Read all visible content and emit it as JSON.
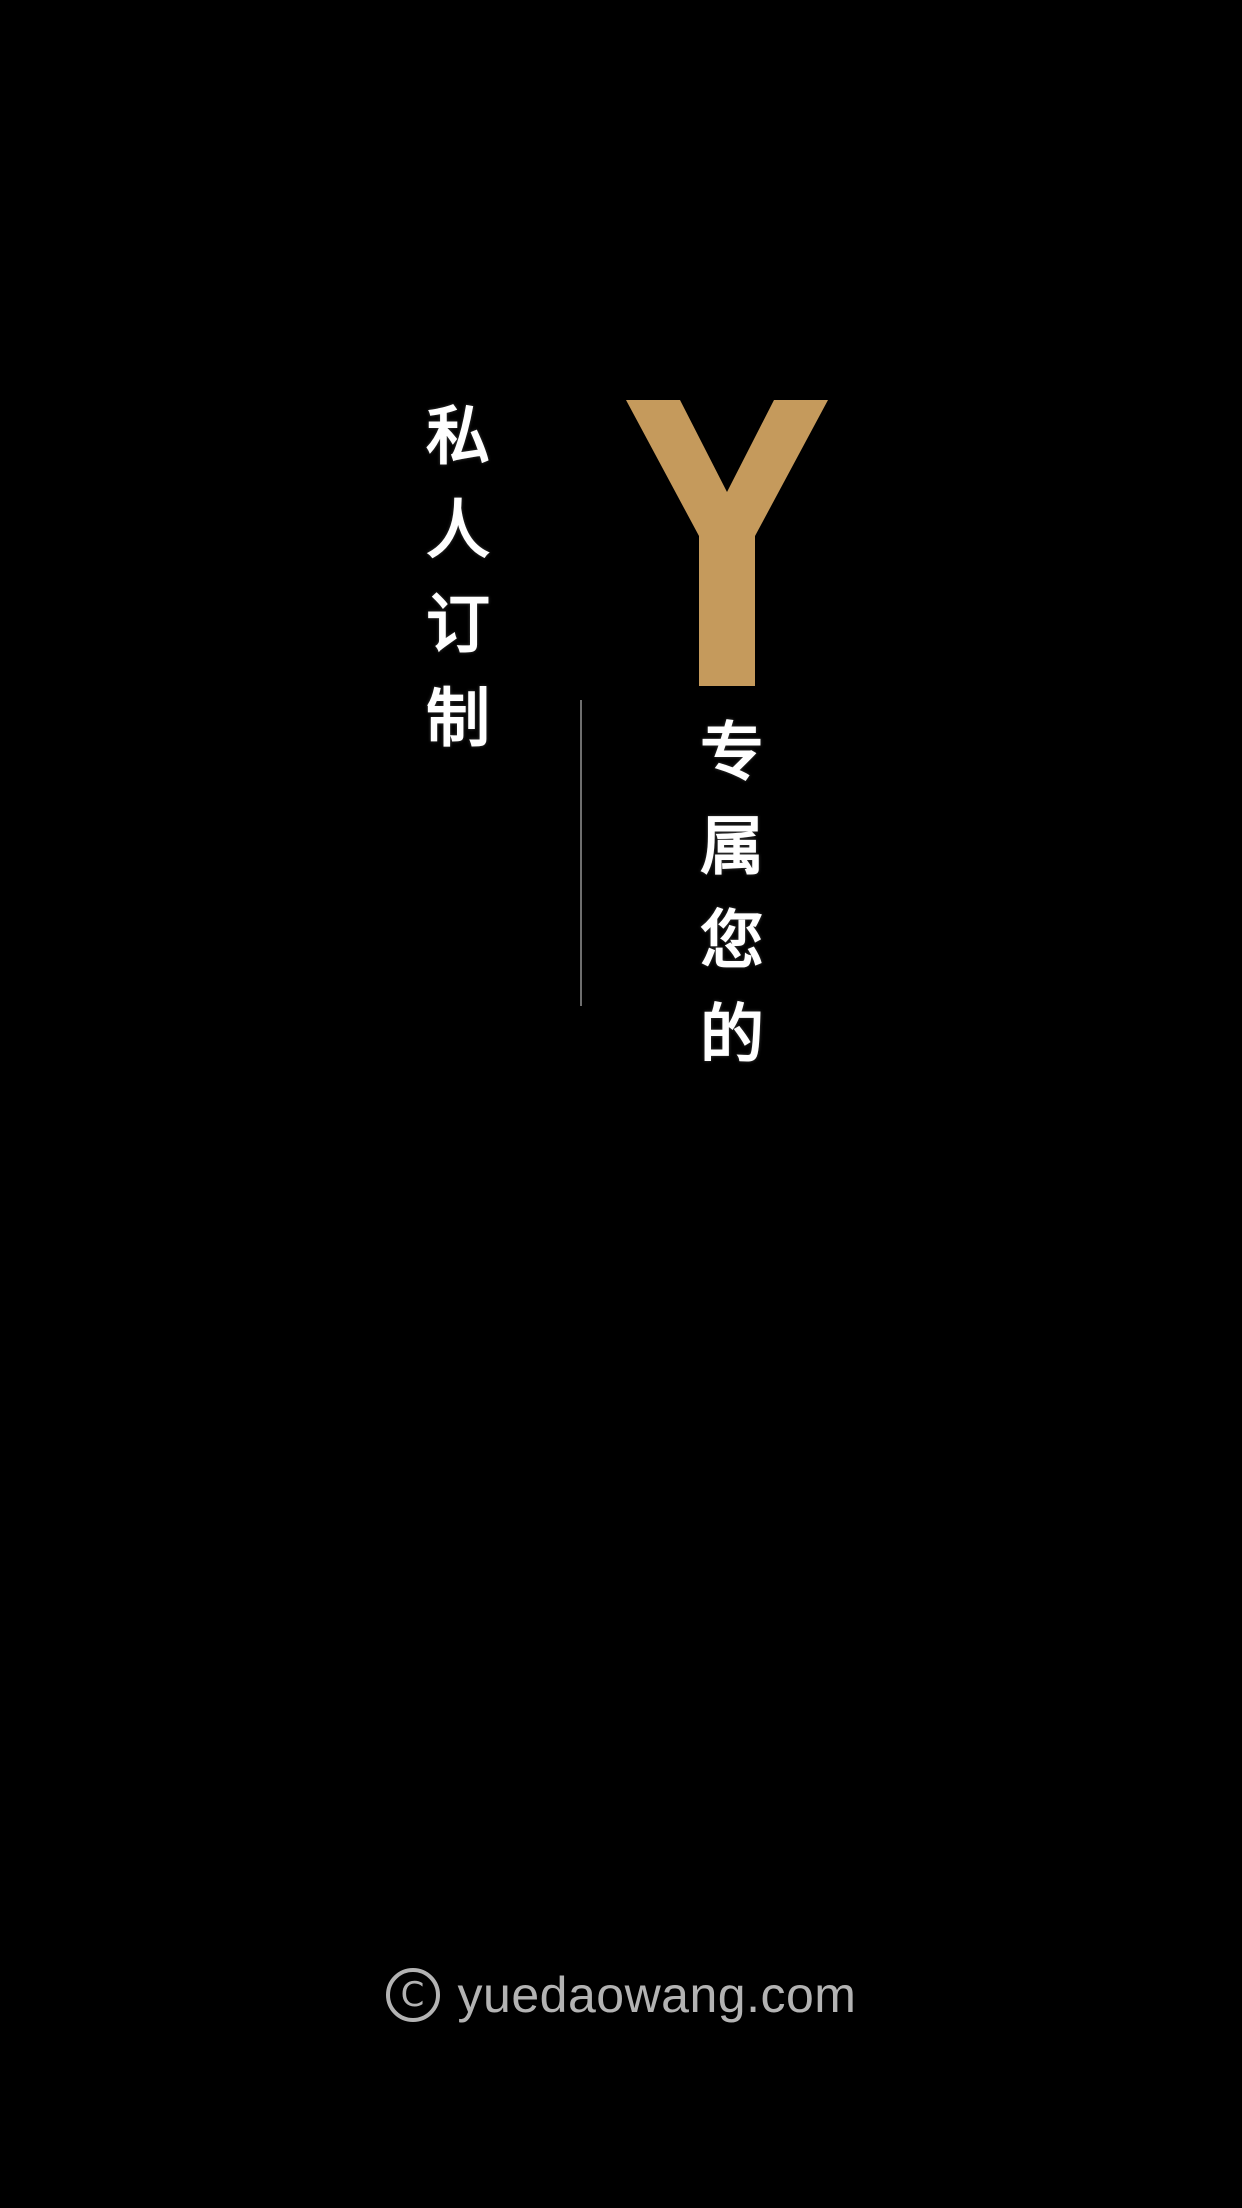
{
  "tagline_left": "私人订制",
  "tagline_right": "专属您的",
  "logo": {
    "letter": "Y",
    "color": "#C59A5C"
  },
  "footer": {
    "icon": "copyright-icon",
    "icon_glyph": "C",
    "domain": "yuedaowang.com"
  },
  "colors": {
    "background": "#000000",
    "text": "#FFFFFF",
    "footer_text": "#B3B3B3",
    "divider": "#6E6E6E"
  }
}
